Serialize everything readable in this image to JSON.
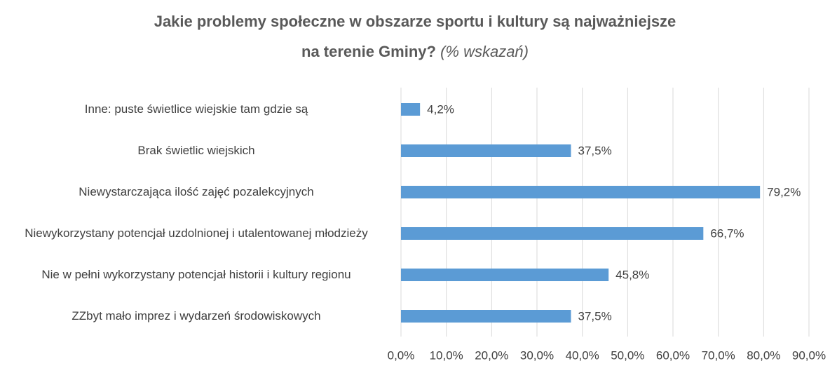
{
  "chart_data": {
    "type": "barh",
    "title": [
      "Jakie problemy społeczne w obszarze sportu i kultury są najważniejsze",
      "na terenie Gminy?"
    ],
    "subtitle": "(% wskazań)",
    "categories": [
      "Inne: puste świetlice wiejskie tam gdzie są",
      "Brak świetlic wiejskich",
      "Niewystarczająca ilość zajęć pozalekcyjnych",
      "Niewykorzystany potencjał uzdolnionej i utalentowanej młodzieży",
      "Nie w pełni wykorzystany potencjał historii i kultury regionu",
      "ZZbyt mało imprez i wydarzeń środowiskowych"
    ],
    "values": [
      4.2,
      37.5,
      79.2,
      66.7,
      45.8,
      37.5
    ],
    "value_labels": [
      "4,2%",
      "37,5%",
      "79,2%",
      "66,7%",
      "45,8%",
      "37,5%"
    ],
    "color": "#5b9bd5",
    "xlim": [
      0,
      90
    ],
    "xticks": [
      {
        "value": 0,
        "label": "0,0%"
      },
      {
        "value": 10,
        "label": "10,0%"
      },
      {
        "value": 20,
        "label": "20,0%"
      },
      {
        "value": 30,
        "label": "30,0%"
      },
      {
        "value": 40,
        "label": "40,0%"
      },
      {
        "value": 50,
        "label": "50,0%"
      },
      {
        "value": 60,
        "label": "60,0%"
      },
      {
        "value": 70,
        "label": "70,0%"
      },
      {
        "value": 80,
        "label": "80,0%"
      },
      {
        "value": 90,
        "label": "90,0%"
      }
    ],
    "grid": true
  }
}
